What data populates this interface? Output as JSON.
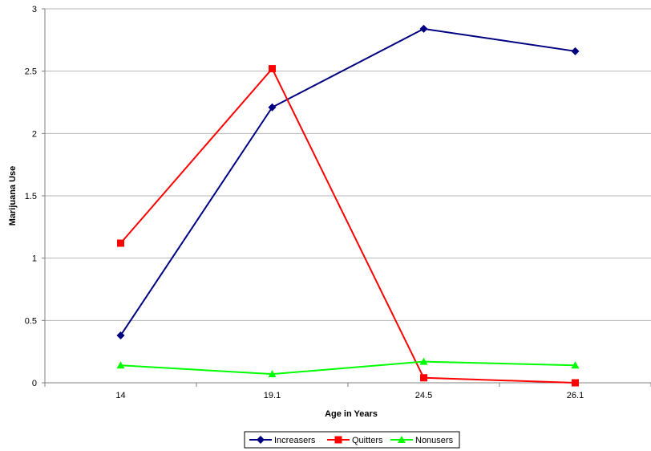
{
  "chart_data": {
    "type": "line",
    "title": "",
    "xlabel": "Age in Years",
    "ylabel": "Marijuana Use",
    "categories": [
      "14",
      "19.1",
      "24.5",
      "26.1"
    ],
    "ylim": [
      0,
      3
    ],
    "yticks": [
      "0",
      "0.5",
      "1",
      "1.5",
      "2",
      "2.5",
      "3"
    ],
    "grid": "horizontal",
    "legend_position": "bottom",
    "series": [
      {
        "name": "Increasers",
        "color": "#000080",
        "marker": "diamond",
        "values": [
          0.38,
          2.21,
          2.84,
          2.66
        ]
      },
      {
        "name": "Quitters",
        "color": "#FF0000",
        "marker": "square",
        "values": [
          1.12,
          2.52,
          0.04,
          0.0
        ]
      },
      {
        "name": "Nonusers",
        "color": "#00FF00",
        "marker": "triangle",
        "values": [
          0.14,
          0.07,
          0.17,
          0.14
        ]
      }
    ]
  }
}
